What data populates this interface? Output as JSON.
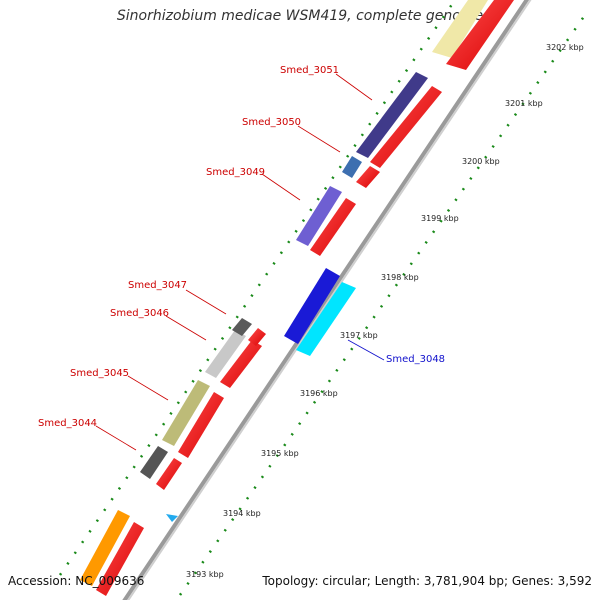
{
  "title": "Sinorhizobium medicae WSM419, complete genome",
  "accession": "Accession: NC_009636",
  "summary": "Topology: circular; Length: 3,781,904 bp; Genes: 3,592",
  "ticks": [
    "3193 kbp",
    "3194 kbp",
    "3195 kbp",
    "3196 kbp",
    "3197 kbp",
    "3198 kbp",
    "3199 kbp",
    "3200 kbp",
    "3201 kbp",
    "3202 kbp"
  ],
  "genes": [
    {
      "name": "Smed_3044",
      "color": "#555555",
      "strand": "top"
    },
    {
      "name": "Smed_3045",
      "color": "#bdbb78",
      "strand": "top"
    },
    {
      "name": "Smed_3046",
      "color": "#c8c8c8",
      "strand": "top"
    },
    {
      "name": "Smed_3047",
      "color": "#5a5a5a",
      "strand": "top"
    },
    {
      "name": "Smed_3048",
      "color": "#1a1ad6",
      "strand": "bottom"
    },
    {
      "name": "Smed_3049",
      "color": "#6e5fd2",
      "strand": "top"
    },
    {
      "name": "Smed_3050",
      "color": "#3d6fb0",
      "strand": "top"
    },
    {
      "name": "Smed_3051",
      "color": "#403a8a",
      "strand": "top"
    }
  ],
  "colors": {
    "cds": "#ff0000",
    "label_top": "#cc0000",
    "label_bottom": "#1010cc",
    "dotted": "#1a8a1a",
    "backbone": "#888888"
  }
}
